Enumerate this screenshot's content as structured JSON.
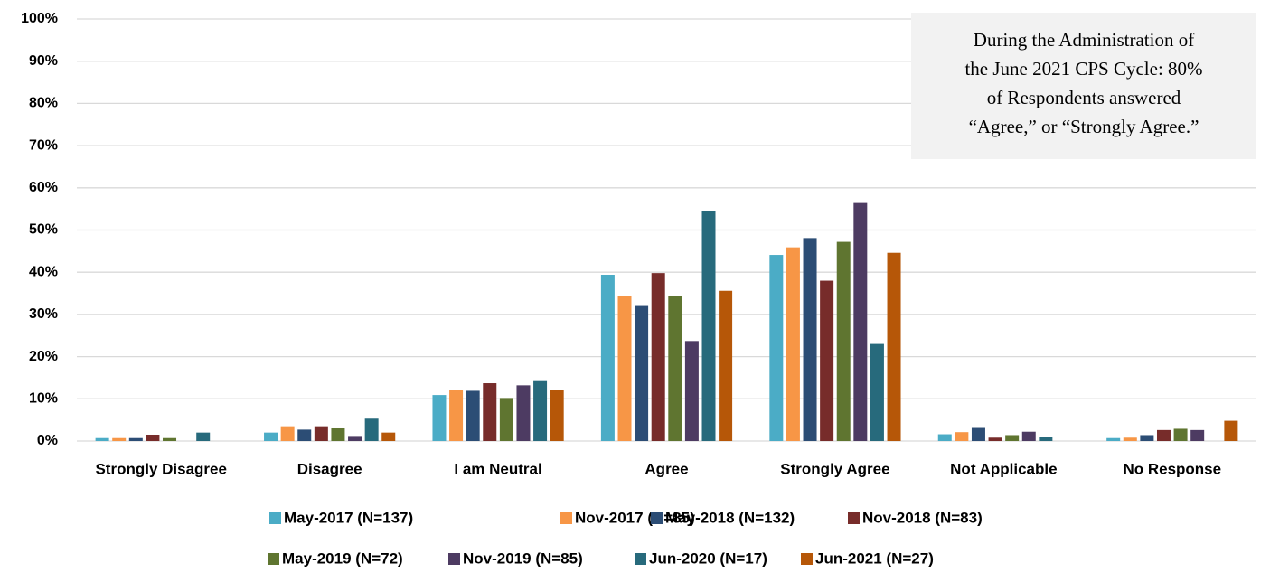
{
  "chart_data": {
    "type": "bar",
    "annotation": [
      "During the Administration of",
      "the June 2021 CPS Cycle: 80%",
      "of Respondents answered",
      "“Agree,” or “Strongly Agree.”"
    ],
    "categories": [
      "Strongly Disagree",
      "Disagree",
      "I am Neutral",
      "Agree",
      "Strongly Agree",
      "Not Applicable",
      "No Response"
    ],
    "series": [
      {
        "name": "May-2017 (N=137)",
        "color": "#4bacc6",
        "values": [
          0.7,
          2,
          10.9,
          39.4,
          44.1,
          1.6,
          0.7
        ]
      },
      {
        "name": "Nov-2017 (N=85)",
        "color": "#f79646",
        "values": [
          0.7,
          3.5,
          12,
          34.4,
          45.9,
          2.1,
          0.8
        ]
      },
      {
        "name": "May-2018 (N=132)",
        "color": "#2c4d75",
        "values": [
          0.7,
          2.7,
          11.9,
          32,
          48.1,
          3.1,
          1.4
        ]
      },
      {
        "name": "Nov-2018 (N=83)",
        "color": "#772c2a",
        "values": [
          1.5,
          3.5,
          13.7,
          39.8,
          38,
          0.8,
          2.6
        ]
      },
      {
        "name": "May-2019 (N=72)",
        "color": "#5f7530",
        "values": [
          0.7,
          3,
          10.2,
          34.4,
          47.2,
          1.4,
          2.9
        ]
      },
      {
        "name": "Nov-2019 (N=85)",
        "color": "#4d3b62",
        "values": [
          0,
          1.2,
          13.2,
          23.7,
          56.4,
          2.2,
          2.6
        ]
      },
      {
        "name": "Jun-2020 (N=17)",
        "color": "#276a7c",
        "values": [
          2,
          5.3,
          14.2,
          54.5,
          23,
          1,
          0
        ]
      },
      {
        "name": "Jun-2021 (N=27)",
        "color": "#b65708",
        "values": [
          0,
          2,
          12.2,
          35.6,
          44.6,
          0,
          4.8
        ]
      }
    ],
    "ylim": [
      0,
      100
    ],
    "yticks": [
      {
        "value": 0,
        "label": "0%"
      },
      {
        "value": 10,
        "label": "10%"
      },
      {
        "value": 20,
        "label": "20%"
      },
      {
        "value": 30,
        "label": "30%"
      },
      {
        "value": 40,
        "label": "40%"
      },
      {
        "value": 50,
        "label": "50%"
      },
      {
        "value": 60,
        "label": "60%"
      },
      {
        "value": 70,
        "label": "70%"
      },
      {
        "value": 80,
        "label": "80%"
      },
      {
        "value": 90,
        "label": "90%"
      },
      {
        "value": 100,
        "label": "100%"
      }
    ],
    "grid": true
  }
}
